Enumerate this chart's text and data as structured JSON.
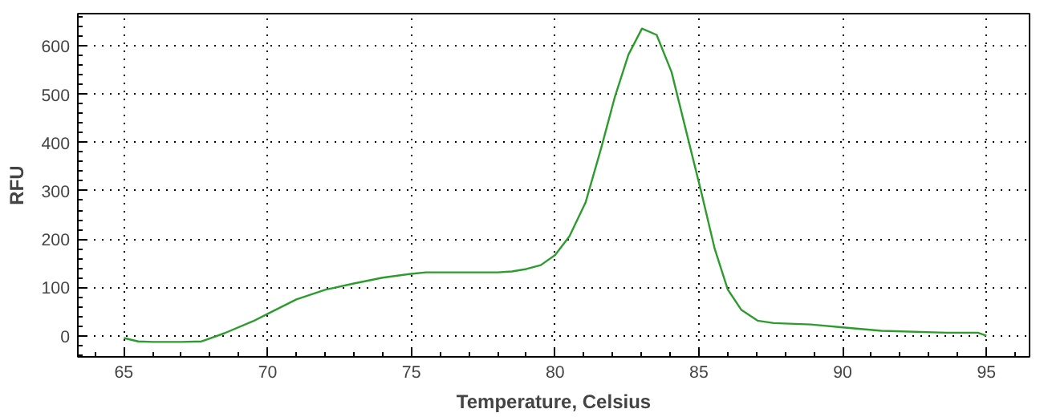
{
  "chart_data": {
    "type": "line",
    "xlabel": "Temperature, Celsius",
    "ylabel": "RFU",
    "x": [
      65,
      65.5,
      66,
      67,
      67.7,
      68.5,
      69.5,
      70,
      71,
      72,
      73,
      74,
      75,
      75.5,
      76,
      77,
      78,
      78.5,
      79,
      79.5,
      80,
      80.5,
      81.06,
      81.6,
      82.08,
      82.55,
      83.02,
      83.53,
      84.05,
      84.61,
      85.08,
      85.55,
      86.0,
      86.48,
      87.04,
      87.6,
      88.9,
      90.0,
      91.35,
      93.6,
      94.7,
      95.0
    ],
    "series": [
      {
        "color": "#2e9b2e",
        "values": [
          -5,
          -12,
          -13,
          -13,
          -12,
          5,
          30,
          45,
          75,
          95,
          108,
          120,
          128,
          131,
          131,
          131,
          131,
          133,
          138,
          146,
          167,
          206,
          276,
          388,
          495,
          582,
          636,
          623,
          546,
          411,
          298,
          180,
          96,
          53,
          31,
          26,
          23,
          17,
          10,
          6,
          6,
          0
        ]
      }
    ],
    "xlim": [
      63.4,
      96.5
    ],
    "ylim": [
      -44,
      667
    ],
    "xticks": [
      65,
      70,
      75,
      80,
      85,
      90,
      95
    ],
    "yticks": [
      0,
      100,
      200,
      300,
      400,
      500,
      600
    ],
    "grid": true,
    "marker": "none",
    "line_style": "solid"
  }
}
